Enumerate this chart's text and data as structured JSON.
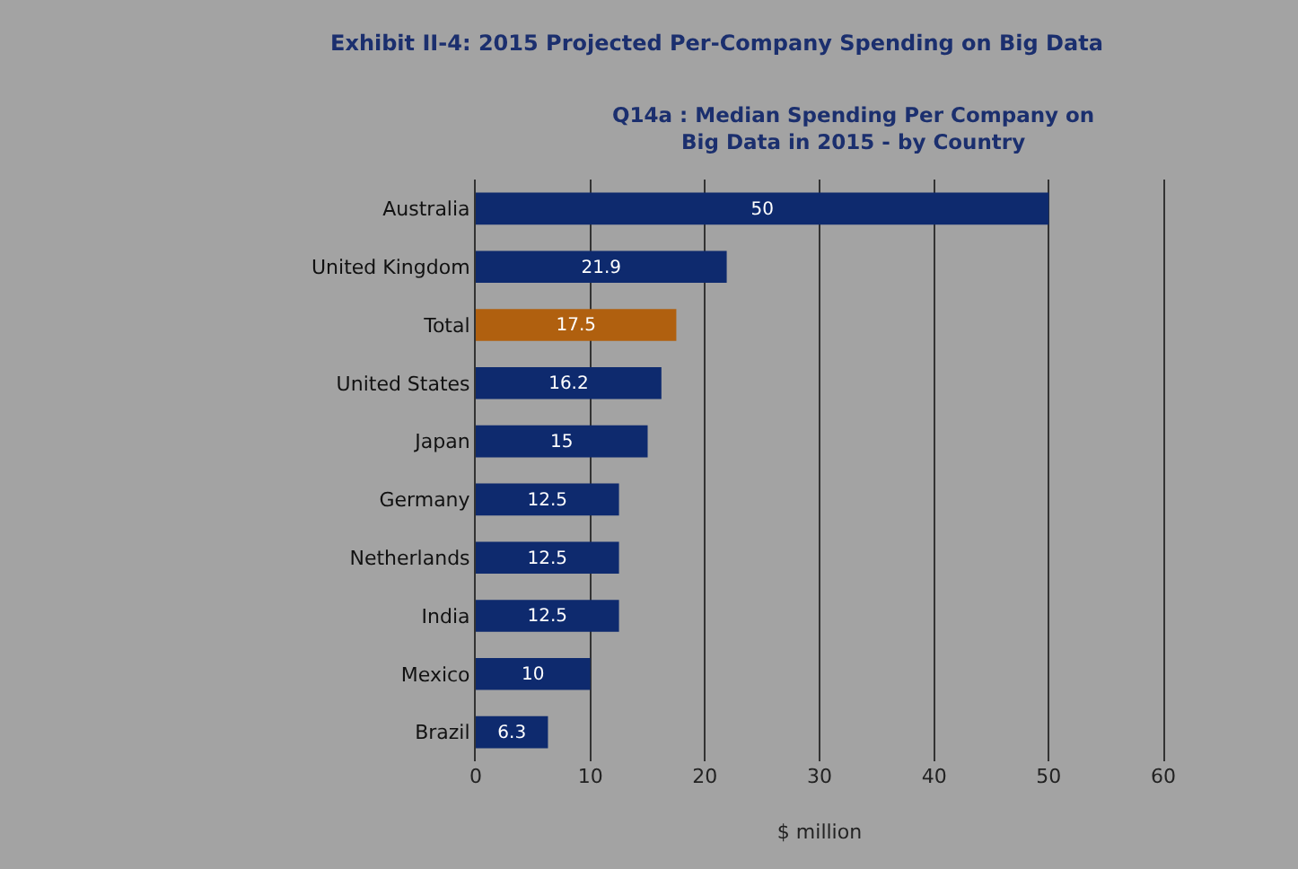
{
  "chart_data": {
    "type": "bar",
    "orientation": "horizontal",
    "title": "Exhibit II-4: 2015 Projected Per-Company Spending on Big Data",
    "subtitle": "Q14a : Median Spending Per Company on\nBig Data in 2015 - by Country",
    "xlabel": "$ million",
    "categories": [
      "Australia",
      "United Kingdom",
      "Total",
      "United States",
      "Japan",
      "Germany",
      "Netherlands",
      "India",
      "Mexico",
      "Brazil"
    ],
    "values": [
      50,
      21.9,
      17.5,
      16.2,
      15,
      12.5,
      12.5,
      12.5,
      10,
      6.3
    ],
    "colors": [
      "#0e2a6e",
      "#0e2a6e",
      "#b0600f",
      "#0e2a6e",
      "#0e2a6e",
      "#0e2a6e",
      "#0e2a6e",
      "#0e2a6e",
      "#0e2a6e",
      "#0e2a6e"
    ],
    "xlim": [
      0,
      60
    ],
    "xticks": [
      0,
      10,
      20,
      30,
      40,
      50,
      60
    ],
    "grid": "x",
    "data_labels": true
  }
}
